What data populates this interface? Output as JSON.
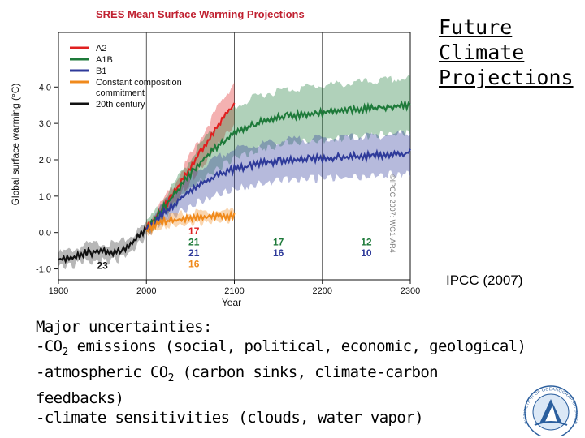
{
  "slide": {
    "title": "Future\nClimate\nProjections",
    "source": "IPCC (2007)",
    "uncertainties_heading": "Major uncertainties:",
    "line1_pre": "-CO",
    "line1_sub": "2",
    "line1_post": " emissions (social, political, economic, geological)",
    "line2_pre": "-atmospheric CO",
    "line2_sub": "2",
    "line2_post": " (carbon sinks, climate-carbon",
    "line3": "feedbacks)",
    "line4": "-climate sensitivities (clouds, water vapor)"
  },
  "logo": {
    "icon": "institution-seal-icon",
    "text": "INSTITUTION OF OCEANOGRAPHIC SCIENCE"
  },
  "chart_data": {
    "type": "line",
    "title": "SRES Mean Surface Warming Projections",
    "xlabel": "Year",
    "ylabel": "Global surface warming (°C)",
    "xlim": [
      1900,
      2300
    ],
    "ylim": [
      -1.3,
      5.5
    ],
    "xticks": [
      "1900",
      "2000",
      "2100",
      "2200",
      "2300"
    ],
    "yticks": [
      "-1.0",
      "0.0",
      "1.0",
      "2.0",
      "3.0",
      "4.0"
    ],
    "copyright": "©IPCC 2007: WG1-AR4",
    "colors": {
      "A2": "#e02020",
      "A1B": "#1e7a3a",
      "B1": "#2e3a9a",
      "commitment": "#f08a1c",
      "20th": "#111111"
    },
    "series": [
      {
        "name": "20th century",
        "color": "#111111",
        "x": [
          1900,
          1910,
          1920,
          1930,
          1940,
          1950,
          1960,
          1970,
          1980,
          1990,
          2000
        ],
        "y": [
          -0.7,
          -0.65,
          -0.6,
          -0.5,
          -0.5,
          -0.45,
          -0.5,
          -0.45,
          -0.3,
          -0.1,
          0.15
        ],
        "band": [
          0.18,
          0.2,
          0.22,
          0.22,
          0.24,
          0.24,
          0.24,
          0.22,
          0.22,
          0.2,
          0.18
        ]
      },
      {
        "name": "A2",
        "color": "#e02020",
        "x": [
          2000,
          2020,
          2040,
          2060,
          2080,
          2100
        ],
        "y": [
          0.15,
          0.75,
          1.45,
          2.2,
          2.95,
          3.6
        ],
        "band": [
          0.15,
          0.2,
          0.3,
          0.4,
          0.5,
          0.6
        ]
      },
      {
        "name": "A1B",
        "color": "#1e7a3a",
        "x": [
          2000,
          2020,
          2040,
          2060,
          2080,
          2100,
          2130,
          2160,
          2200,
          2250,
          2300
        ],
        "y": [
          0.15,
          0.75,
          1.35,
          1.95,
          2.4,
          2.8,
          3.1,
          3.25,
          3.35,
          3.45,
          3.55
        ],
        "band": [
          0.15,
          0.25,
          0.35,
          0.5,
          0.6,
          0.7,
          0.75,
          0.75,
          0.75,
          0.75,
          0.75
        ]
      },
      {
        "name": "B1",
        "color": "#2e3a9a",
        "x": [
          2000,
          2020,
          2040,
          2060,
          2080,
          2100,
          2130,
          2160,
          2200,
          2250,
          2300
        ],
        "y": [
          0.15,
          0.6,
          1.0,
          1.35,
          1.6,
          1.8,
          1.95,
          2.05,
          2.1,
          2.15,
          2.25
        ],
        "band": [
          0.15,
          0.25,
          0.35,
          0.45,
          0.5,
          0.55,
          0.55,
          0.55,
          0.55,
          0.55,
          0.55
        ]
      },
      {
        "name": "Constant composition commitment",
        "color": "#f08a1c",
        "x": [
          2000,
          2020,
          2040,
          2060,
          2080,
          2100
        ],
        "y": [
          0.15,
          0.35,
          0.42,
          0.46,
          0.5,
          0.52
        ],
        "band": [
          0.1,
          0.15,
          0.15,
          0.15,
          0.15,
          0.15
        ]
      }
    ],
    "legend": {
      "placement": "top-left",
      "entries": [
        {
          "label": "A2",
          "color": "#e02020"
        },
        {
          "label": "A1B",
          "color": "#1e7a3a"
        },
        {
          "label": "B1",
          "color": "#2e3a9a"
        },
        {
          "label": "Constant composition",
          "label2": "commitment",
          "color": "#f08a1c"
        },
        {
          "label": "20th century",
          "color": "#111111"
        }
      ]
    },
    "model_counts": [
      {
        "text": "23",
        "x": 1950,
        "y": -1.0,
        "color": "#111111"
      },
      {
        "text": "17",
        "x": 2054,
        "y": -0.05,
        "color": "#e02020"
      },
      {
        "text": "21",
        "x": 2054,
        "y": -0.35,
        "color": "#1e7a3a"
      },
      {
        "text": "21",
        "x": 2054,
        "y": -0.65,
        "color": "#2e3a9a"
      },
      {
        "text": "16",
        "x": 2054,
        "y": -0.95,
        "color": "#f08a1c"
      },
      {
        "text": "17",
        "x": 2150,
        "y": -0.35,
        "color": "#1e7a3a"
      },
      {
        "text": "16",
        "x": 2150,
        "y": -0.65,
        "color": "#2e3a9a"
      },
      {
        "text": "12",
        "x": 2250,
        "y": -0.35,
        "color": "#1e7a3a"
      },
      {
        "text": "10",
        "x": 2250,
        "y": -0.65,
        "color": "#2e3a9a"
      }
    ],
    "vertical_markers": [
      2000,
      2100,
      2200
    ]
  }
}
